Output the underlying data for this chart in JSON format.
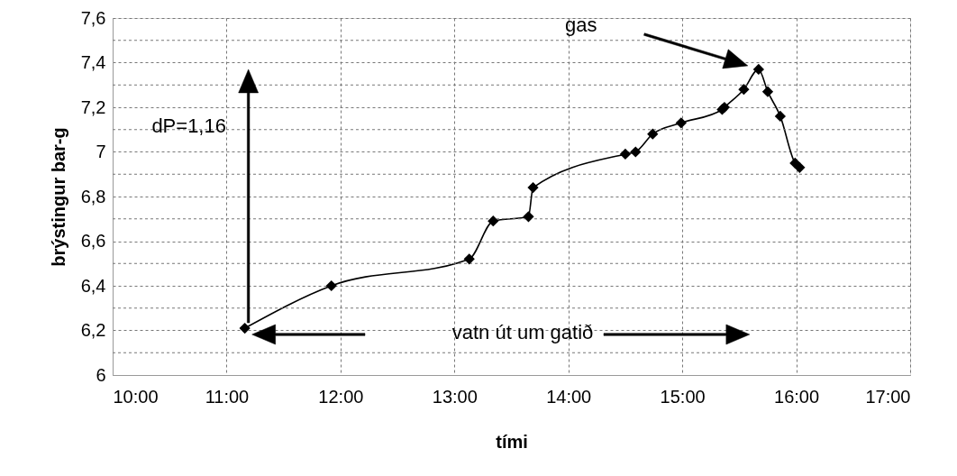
{
  "chart_data": {
    "type": "line",
    "xlabel": "tími",
    "ylabel": "brýstingur bar-g",
    "x": [
      11.16,
      11.92,
      13.13,
      13.34,
      13.65,
      13.69,
      14.5,
      14.59,
      14.74,
      14.99,
      15.35,
      15.37,
      15.54,
      15.67,
      15.75,
      15.86,
      15.99,
      16.03
    ],
    "series": [
      {
        "color": "#000000",
        "values": [
          6.21,
          6.4,
          6.52,
          6.69,
          6.71,
          6.84,
          6.99,
          7.0,
          7.08,
          7.13,
          7.19,
          7.2,
          7.28,
          7.37,
          7.27,
          7.16,
          6.95,
          6.93
        ]
      }
    ],
    "xlim": [
      10,
      17
    ],
    "ylim": [
      6,
      7.6
    ],
    "xticks": [
      {
        "value": 10,
        "label": "10:00"
      },
      {
        "value": 11,
        "label": "11:00"
      },
      {
        "value": 12,
        "label": "12:00"
      },
      {
        "value": 13,
        "label": "13:00"
      },
      {
        "value": 14,
        "label": "14:00"
      },
      {
        "value": 15,
        "label": "15:00"
      },
      {
        "value": 16,
        "label": "16:00"
      },
      {
        "value": 17,
        "label": "17:00"
      }
    ],
    "yticks": [
      6,
      {
        "value": 6.1,
        "label": null
      },
      {
        "value": 6.2,
        "label": "6,2"
      },
      {
        "value": 6.3,
        "label": null
      },
      {
        "value": 6.4,
        "label": "6,4"
      },
      {
        "value": 6.5,
        "label": null
      },
      {
        "value": 6.6,
        "label": "6,6"
      },
      {
        "value": 6.7,
        "label": null
      },
      {
        "value": 6.8,
        "label": "6,8"
      },
      {
        "value": 6.9,
        "label": null
      },
      7,
      {
        "value": 7.1,
        "label": null
      },
      {
        "value": 7.2,
        "label": "7,2"
      },
      {
        "value": 7.3,
        "label": null
      },
      {
        "value": 7.4,
        "label": "7,4"
      },
      {
        "value": 7.5,
        "label": null
      },
      {
        "value": 7.6,
        "label": "7,6"
      }
    ],
    "annotations": [
      "dP=1,16",
      "vatn út um gatið",
      "gas"
    ],
    "grid": true,
    "marker": "diamond",
    "line_style": "solid"
  }
}
